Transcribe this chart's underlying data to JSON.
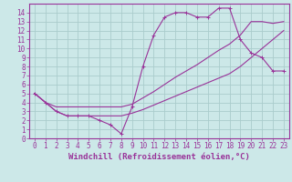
{
  "bg_color": "#cce8e8",
  "grid_color": "#aacccc",
  "line_color": "#993399",
  "xlabel": "Windchill (Refroidissement éolien,°C)",
  "xlim": [
    -0.5,
    23.5
  ],
  "ylim": [
    0,
    15
  ],
  "xticks": [
    0,
    1,
    2,
    3,
    4,
    5,
    6,
    7,
    8,
    9,
    10,
    11,
    12,
    13,
    14,
    15,
    16,
    17,
    18,
    19,
    20,
    21,
    22,
    23
  ],
  "yticks": [
    0,
    1,
    2,
    3,
    4,
    5,
    6,
    7,
    8,
    9,
    10,
    11,
    12,
    13,
    14
  ],
  "curve1_x": [
    0,
    1,
    2,
    3,
    4,
    5,
    6,
    7,
    8,
    9,
    10,
    11,
    12,
    13,
    14,
    15,
    16,
    17,
    18,
    19,
    20,
    21,
    22,
    23
  ],
  "curve1_y": [
    5,
    4,
    3,
    2.5,
    2.5,
    2.5,
    2,
    1.5,
    0.5,
    3.5,
    8,
    11.5,
    13.5,
    14,
    14,
    13.5,
    13.5,
    14.5,
    14.5,
    11,
    9.5,
    9.0,
    7.5,
    7.5
  ],
  "curve2_x": [
    0,
    1,
    2,
    3,
    4,
    5,
    6,
    7,
    8,
    9,
    10,
    11,
    12,
    13,
    14,
    15,
    16,
    17,
    18,
    19,
    20,
    21,
    22,
    23
  ],
  "curve2_y": [
    5,
    4,
    3.5,
    3.5,
    3.5,
    3.5,
    3.5,
    3.5,
    3.5,
    3.8,
    4.5,
    5.2,
    6.0,
    6.8,
    7.5,
    8.2,
    9.0,
    9.8,
    10.5,
    11.5,
    13.0,
    13.0,
    12.8,
    13.0
  ],
  "curve3_x": [
    0,
    1,
    2,
    3,
    4,
    5,
    6,
    7,
    8,
    9,
    10,
    11,
    12,
    13,
    14,
    15,
    16,
    17,
    18,
    19,
    20,
    21,
    22,
    23
  ],
  "curve3_y": [
    5,
    4,
    3,
    2.5,
    2.5,
    2.5,
    2.5,
    2.5,
    2.5,
    2.8,
    3.2,
    3.7,
    4.2,
    4.7,
    5.2,
    5.7,
    6.2,
    6.7,
    7.2,
    8.0,
    9.0,
    10.0,
    11.0,
    12.0
  ],
  "tick_fontsize": 5.5,
  "label_fontsize": 6.5
}
